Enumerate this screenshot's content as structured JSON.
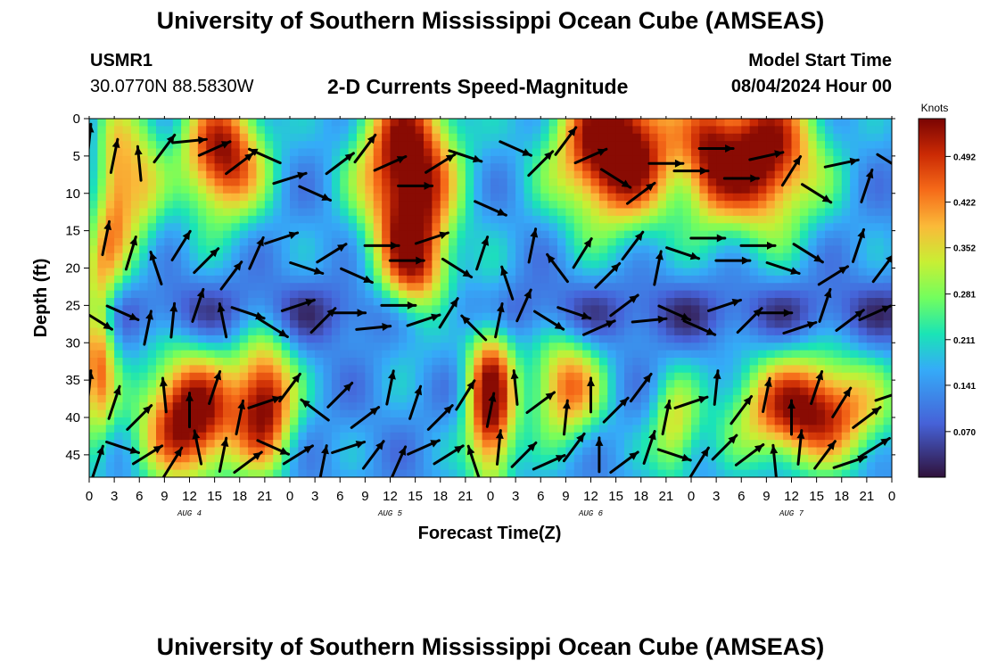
{
  "header": {
    "title": "University of Southern Mississippi Ocean Cube (AMSEAS)",
    "station": "USMR1",
    "coords": "30.0770N  88.5830W",
    "subtitle": "2-D Currents Speed-Magnitude",
    "model_label": "Model Start Time",
    "model_time": "08/04/2024 Hour 00"
  },
  "footer": {
    "title": "University of Southern Mississippi Ocean Cube (AMSEAS)"
  },
  "chart_data": {
    "type": "heatmap",
    "title": "2-D Currents Speed-Magnitude",
    "xlabel": "Forecast Time(Z)",
    "ylabel": "Depth (ft)",
    "x_range_hours": [
      0,
      96
    ],
    "y_range_ft": [
      0,
      48
    ],
    "x_tick_labels": [
      "0",
      "3",
      "6",
      "9",
      "12",
      "15",
      "18",
      "21",
      "0",
      "3",
      "6",
      "9",
      "12",
      "15",
      "18",
      "21",
      "0",
      "3",
      "6",
      "9",
      "12",
      "15",
      "18",
      "21",
      "0",
      "3",
      "6",
      "9",
      "12",
      "15",
      "18",
      "21",
      "0"
    ],
    "y_tick_labels": [
      "0",
      "5",
      "10",
      "15",
      "20",
      "25",
      "30",
      "35",
      "40",
      "45"
    ],
    "y_tick_values": [
      0,
      5,
      10,
      15,
      20,
      25,
      30,
      35,
      40,
      45
    ],
    "day_labels": [
      {
        "label": "AUG 4",
        "hour": 12
      },
      {
        "label": "AUG 5",
        "hour": 36
      },
      {
        "label": "AUG 6",
        "hour": 60
      },
      {
        "label": "AUG 7",
        "hour": 84
      }
    ],
    "colorbar": {
      "unit": "Knots",
      "min": 0.0,
      "max": 0.55,
      "tick_labels": [
        "0.492",
        "0.422",
        "0.352",
        "0.281",
        "0.211",
        "0.141",
        "0.070"
      ],
      "tick_values": [
        0.492,
        0.422,
        0.352,
        0.281,
        0.211,
        0.141,
        0.07
      ]
    },
    "field_blobs": [
      {
        "t": 16,
        "d": 5,
        "st": 3.5,
        "sd": 6,
        "a": 0.4
      },
      {
        "t": 38,
        "d": 6,
        "st": 4,
        "sd": 8,
        "a": 0.45
      },
      {
        "t": 39,
        "d": 20,
        "st": 3,
        "sd": 6,
        "a": 0.3
      },
      {
        "t": 63,
        "d": 4,
        "st": 5,
        "sd": 7,
        "a": 0.5
      },
      {
        "t": 80,
        "d": 5,
        "st": 5,
        "sd": 7,
        "a": 0.45
      },
      {
        "t": 12,
        "d": 40,
        "st": 4,
        "sd": 6,
        "a": 0.45
      },
      {
        "t": 21,
        "d": 38,
        "st": 2.5,
        "sd": 6,
        "a": 0.4
      },
      {
        "t": 48,
        "d": 38,
        "st": 2,
        "sd": 8,
        "a": 0.42
      },
      {
        "t": 57,
        "d": 36,
        "st": 3,
        "sd": 5,
        "a": 0.3
      },
      {
        "t": 86,
        "d": 39,
        "st": 6,
        "sd": 5,
        "a": 0.42
      },
      {
        "t": 1,
        "d": 30,
        "st": 1.5,
        "sd": 10,
        "a": 0.3
      },
      {
        "t": 3,
        "d": 10,
        "st": 1.5,
        "sd": 8,
        "a": 0.22
      },
      {
        "t": 6,
        "d": 8,
        "st": 2,
        "sd": 8,
        "a": 0.2
      },
      {
        "t": 70,
        "d": 42,
        "st": 2,
        "sd": 5,
        "a": 0.2
      },
      {
        "t": 74,
        "d": 5,
        "st": 2,
        "sd": 6,
        "a": 0.15
      }
    ],
    "vectors": [
      {
        "t": 0,
        "d": 3,
        "u": 0.1,
        "v": 1.0
      },
      {
        "t": 3,
        "d": 5,
        "u": 0.2,
        "v": 1.0
      },
      {
        "t": 6,
        "d": 6,
        "u": -0.1,
        "v": 1.0
      },
      {
        "t": 9,
        "d": 4,
        "u": 0.6,
        "v": 0.8
      },
      {
        "t": 12,
        "d": 3,
        "u": 1.0,
        "v": 0.1
      },
      {
        "t": 15,
        "d": 4,
        "u": 0.9,
        "v": 0.4
      },
      {
        "t": 18,
        "d": 6,
        "u": 0.8,
        "v": 0.6
      },
      {
        "t": 21,
        "d": 5,
        "u": -0.9,
        "v": 0.4
      },
      {
        "t": 24,
        "d": 8,
        "u": 0.95,
        "v": 0.3
      },
      {
        "t": 27,
        "d": 10,
        "u": 0.9,
        "v": -0.4
      },
      {
        "t": 30,
        "d": 6,
        "u": 0.8,
        "v": 0.6
      },
      {
        "t": 33,
        "d": 4,
        "u": 0.6,
        "v": 0.8
      },
      {
        "t": 36,
        "d": 6,
        "u": 0.9,
        "v": 0.4
      },
      {
        "t": 39,
        "d": 9,
        "u": 1.0,
        "v": 0.0
      },
      {
        "t": 42,
        "d": 6,
        "u": 0.8,
        "v": 0.5
      },
      {
        "t": 45,
        "d": 5,
        "u": 0.9,
        "v": -0.3
      },
      {
        "t": 48,
        "d": 12,
        "u": 0.9,
        "v": -0.4
      },
      {
        "t": 51,
        "d": 4,
        "u": 0.9,
        "v": -0.4
      },
      {
        "t": 54,
        "d": 6,
        "u": 0.7,
        "v": 0.7
      },
      {
        "t": 57,
        "d": 3,
        "u": 0.6,
        "v": 0.8
      },
      {
        "t": 60,
        "d": 5,
        "u": 0.9,
        "v": 0.4
      },
      {
        "t": 63,
        "d": 8,
        "u": 0.8,
        "v": -0.5
      },
      {
        "t": 66,
        "d": 10,
        "u": 0.8,
        "v": 0.6
      },
      {
        "t": 69,
        "d": 6,
        "u": 1.0,
        "v": 0.0
      },
      {
        "t": 72,
        "d": 7,
        "u": 1.0,
        "v": 0.0
      },
      {
        "t": 75,
        "d": 4,
        "u": 1.0,
        "v": 0.0
      },
      {
        "t": 78,
        "d": 8,
        "u": 1.0,
        "v": 0.0
      },
      {
        "t": 81,
        "d": 5,
        "u": 0.9,
        "v": 0.2
      },
      {
        "t": 84,
        "d": 7,
        "u": 0.5,
        "v": 0.8
      },
      {
        "t": 87,
        "d": 10,
        "u": 0.8,
        "v": -0.5
      },
      {
        "t": 90,
        "d": 6,
        "u": 0.95,
        "v": 0.2
      },
      {
        "t": 93,
        "d": 9,
        "u": 0.3,
        "v": 0.9
      },
      {
        "t": 96,
        "d": 6,
        "u": 0.8,
        "v": -0.5
      },
      {
        "t": 2,
        "d": 16,
        "u": 0.2,
        "v": 1.0
      },
      {
        "t": 5,
        "d": 18,
        "u": 0.3,
        "v": 1.0
      },
      {
        "t": 8,
        "d": 20,
        "u": -0.3,
        "v": 0.9
      },
      {
        "t": 11,
        "d": 17,
        "u": 0.5,
        "v": 0.8
      },
      {
        "t": 14,
        "d": 19,
        "u": 0.7,
        "v": 0.7
      },
      {
        "t": 17,
        "d": 21,
        "u": 0.6,
        "v": 0.8
      },
      {
        "t": 20,
        "d": 18,
        "u": 0.4,
        "v": 0.9
      },
      {
        "t": 23,
        "d": 16,
        "u": 0.9,
        "v": 0.3
      },
      {
        "t": 26,
        "d": 20,
        "u": 0.9,
        "v": -0.3
      },
      {
        "t": 29,
        "d": 18,
        "u": 0.8,
        "v": 0.5
      },
      {
        "t": 32,
        "d": 21,
        "u": 0.9,
        "v": -0.4
      },
      {
        "t": 35,
        "d": 17,
        "u": 1.0,
        "v": 0.0
      },
      {
        "t": 38,
        "d": 19,
        "u": 1.0,
        "v": 0.0
      },
      {
        "t": 41,
        "d": 16,
        "u": 0.9,
        "v": 0.3
      },
      {
        "t": 44,
        "d": 20,
        "u": 0.8,
        "v": -0.5
      },
      {
        "t": 47,
        "d": 18,
        "u": 0.3,
        "v": 0.9
      },
      {
        "t": 50,
        "d": 22,
        "u": -0.3,
        "v": 0.9
      },
      {
        "t": 53,
        "d": 17,
        "u": 0.2,
        "v": 1.0
      },
      {
        "t": 56,
        "d": 20,
        "u": -0.6,
        "v": 0.8
      },
      {
        "t": 59,
        "d": 18,
        "u": 0.5,
        "v": 0.8
      },
      {
        "t": 62,
        "d": 21,
        "u": 0.7,
        "v": 0.7
      },
      {
        "t": 65,
        "d": 17,
        "u": 0.6,
        "v": 0.8
      },
      {
        "t": 68,
        "d": 20,
        "u": 0.2,
        "v": 1.0
      },
      {
        "t": 71,
        "d": 18,
        "u": 0.9,
        "v": -0.3
      },
      {
        "t": 74,
        "d": 16,
        "u": 1.0,
        "v": 0.0
      },
      {
        "t": 77,
        "d": 19,
        "u": 1.0,
        "v": 0.0
      },
      {
        "t": 80,
        "d": 17,
        "u": 1.0,
        "v": 0.0
      },
      {
        "t": 83,
        "d": 20,
        "u": 0.9,
        "v": -0.3
      },
      {
        "t": 86,
        "d": 18,
        "u": 0.8,
        "v": -0.5
      },
      {
        "t": 89,
        "d": 21,
        "u": 0.8,
        "v": 0.5
      },
      {
        "t": 92,
        "d": 17,
        "u": 0.3,
        "v": 0.9
      },
      {
        "t": 95,
        "d": 20,
        "u": 0.6,
        "v": 0.8
      },
      {
        "t": 1,
        "d": 27,
        "u": 0.8,
        "v": -0.5
      },
      {
        "t": 4,
        "d": 26,
        "u": 0.9,
        "v": -0.4
      },
      {
        "t": 7,
        "d": 28,
        "u": 0.2,
        "v": 1.0
      },
      {
        "t": 10,
        "d": 27,
        "u": 0.1,
        "v": 1.0
      },
      {
        "t": 13,
        "d": 25,
        "u": 0.3,
        "v": 0.9
      },
      {
        "t": 16,
        "d": 27,
        "u": -0.2,
        "v": 1.0
      },
      {
        "t": 19,
        "d": 26,
        "u": 0.9,
        "v": -0.3
      },
      {
        "t": 22,
        "d": 28,
        "u": 0.8,
        "v": -0.5
      },
      {
        "t": 25,
        "d": 25,
        "u": 0.9,
        "v": 0.3
      },
      {
        "t": 28,
        "d": 27,
        "u": 0.7,
        "v": 0.7
      },
      {
        "t": 31,
        "d": 26,
        "u": 1.0,
        "v": 0.0
      },
      {
        "t": 34,
        "d": 28,
        "u": 1.0,
        "v": 0.1
      },
      {
        "t": 37,
        "d": 25,
        "u": 1.0,
        "v": 0.0
      },
      {
        "t": 40,
        "d": 27,
        "u": 0.9,
        "v": 0.3
      },
      {
        "t": 43,
        "d": 26,
        "u": 0.5,
        "v": 0.8
      },
      {
        "t": 46,
        "d": 28,
        "u": -0.7,
        "v": 0.7
      },
      {
        "t": 49,
        "d": 27,
        "u": 0.2,
        "v": 1.0
      },
      {
        "t": 52,
        "d": 25,
        "u": 0.4,
        "v": 0.9
      },
      {
        "t": 55,
        "d": 27,
        "u": 0.8,
        "v": -0.5
      },
      {
        "t": 58,
        "d": 26,
        "u": 0.9,
        "v": -0.3
      },
      {
        "t": 61,
        "d": 28,
        "u": 0.9,
        "v": 0.4
      },
      {
        "t": 64,
        "d": 25,
        "u": 0.8,
        "v": 0.6
      },
      {
        "t": 67,
        "d": 27,
        "u": 1.0,
        "v": 0.1
      },
      {
        "t": 70,
        "d": 26,
        "u": 0.9,
        "v": -0.4
      },
      {
        "t": 73,
        "d": 28,
        "u": 0.9,
        "v": -0.4
      },
      {
        "t": 76,
        "d": 25,
        "u": 0.9,
        "v": 0.3
      },
      {
        "t": 79,
        "d": 27,
        "u": 0.7,
        "v": 0.7
      },
      {
        "t": 82,
        "d": 26,
        "u": 1.0,
        "v": 0.0
      },
      {
        "t": 85,
        "d": 28,
        "u": 0.9,
        "v": 0.3
      },
      {
        "t": 88,
        "d": 25,
        "u": 0.3,
        "v": 0.9
      },
      {
        "t": 91,
        "d": 27,
        "u": 0.8,
        "v": 0.6
      },
      {
        "t": 94,
        "d": 26,
        "u": 0.9,
        "v": 0.4
      },
      {
        "t": 0,
        "d": 36,
        "u": 0.1,
        "v": 1.0
      },
      {
        "t": 3,
        "d": 38,
        "u": 0.3,
        "v": 0.9
      },
      {
        "t": 6,
        "d": 40,
        "u": 0.7,
        "v": 0.7
      },
      {
        "t": 9,
        "d": 37,
        "u": -0.1,
        "v": 1.0
      },
      {
        "t": 12,
        "d": 39,
        "u": 0.0,
        "v": 1.0
      },
      {
        "t": 15,
        "d": 36,
        "u": 0.3,
        "v": 0.9
      },
      {
        "t": 18,
        "d": 40,
        "u": 0.2,
        "v": 1.0
      },
      {
        "t": 21,
        "d": 38,
        "u": 0.9,
        "v": 0.3
      },
      {
        "t": 24,
        "d": 36,
        "u": 0.6,
        "v": 0.8
      },
      {
        "t": 27,
        "d": 39,
        "u": -0.8,
        "v": 0.6
      },
      {
        "t": 30,
        "d": 37,
        "u": 0.7,
        "v": 0.7
      },
      {
        "t": 33,
        "d": 40,
        "u": 0.8,
        "v": 0.6
      },
      {
        "t": 36,
        "d": 36,
        "u": 0.2,
        "v": 1.0
      },
      {
        "t": 39,
        "d": 38,
        "u": 0.3,
        "v": 0.9
      },
      {
        "t": 42,
        "d": 40,
        "u": 0.7,
        "v": 0.7
      },
      {
        "t": 45,
        "d": 37,
        "u": 0.5,
        "v": 0.8
      },
      {
        "t": 48,
        "d": 39,
        "u": 0.2,
        "v": 1.0
      },
      {
        "t": 51,
        "d": 36,
        "u": -0.1,
        "v": 1.0
      },
      {
        "t": 54,
        "d": 38,
        "u": 0.8,
        "v": 0.6
      },
      {
        "t": 57,
        "d": 40,
        "u": 0.1,
        "v": 1.0
      },
      {
        "t": 60,
        "d": 37,
        "u": 0.0,
        "v": 1.0
      },
      {
        "t": 63,
        "d": 39,
        "u": 0.7,
        "v": 0.7
      },
      {
        "t": 66,
        "d": 36,
        "u": 0.6,
        "v": 0.8
      },
      {
        "t": 69,
        "d": 40,
        "u": 0.2,
        "v": 1.0
      },
      {
        "t": 72,
        "d": 38,
        "u": 0.9,
        "v": 0.3
      },
      {
        "t": 75,
        "d": 36,
        "u": 0.1,
        "v": 1.0
      },
      {
        "t": 78,
        "d": 39,
        "u": 0.6,
        "v": 0.8
      },
      {
        "t": 81,
        "d": 37,
        "u": 0.2,
        "v": 1.0
      },
      {
        "t": 84,
        "d": 40,
        "u": 0.0,
        "v": 1.0
      },
      {
        "t": 87,
        "d": 36,
        "u": 0.3,
        "v": 0.9
      },
      {
        "t": 90,
        "d": 38,
        "u": 0.5,
        "v": 0.8
      },
      {
        "t": 93,
        "d": 40,
        "u": 0.8,
        "v": 0.6
      },
      {
        "t": 96,
        "d": 37,
        "u": 0.9,
        "v": 0.3
      },
      {
        "t": 1,
        "d": 46,
        "u": 0.3,
        "v": 0.9
      },
      {
        "t": 4,
        "d": 44,
        "u": 0.9,
        "v": -0.3
      },
      {
        "t": 7,
        "d": 45,
        "u": 0.8,
        "v": 0.5
      },
      {
        "t": 10,
        "d": 46,
        "u": 0.5,
        "v": 0.8
      },
      {
        "t": 13,
        "d": 44,
        "u": -0.2,
        "v": 1.0
      },
      {
        "t": 16,
        "d": 45,
        "u": 0.2,
        "v": 1.0
      },
      {
        "t": 19,
        "d": 46,
        "u": 0.8,
        "v": 0.6
      },
      {
        "t": 22,
        "d": 44,
        "u": 0.9,
        "v": -0.4
      },
      {
        "t": 25,
        "d": 45,
        "u": 0.8,
        "v": 0.5
      },
      {
        "t": 28,
        "d": 46,
        "u": 0.2,
        "v": 1.0
      },
      {
        "t": 31,
        "d": 44,
        "u": 0.9,
        "v": 0.3
      },
      {
        "t": 34,
        "d": 45,
        "u": 0.6,
        "v": 0.8
      },
      {
        "t": 37,
        "d": 46,
        "u": 0.4,
        "v": 0.9
      },
      {
        "t": 40,
        "d": 44,
        "u": 0.9,
        "v": 0.4
      },
      {
        "t": 43,
        "d": 45,
        "u": 0.8,
        "v": 0.5
      },
      {
        "t": 46,
        "d": 46,
        "u": -0.3,
        "v": 0.9
      },
      {
        "t": 49,
        "d": 44,
        "u": 0.1,
        "v": 1.0
      },
      {
        "t": 52,
        "d": 45,
        "u": 0.7,
        "v": 0.7
      },
      {
        "t": 55,
        "d": 46,
        "u": 0.9,
        "v": 0.4
      },
      {
        "t": 58,
        "d": 44,
        "u": 0.6,
        "v": 0.8
      },
      {
        "t": 61,
        "d": 45,
        "u": 0.0,
        "v": 1.0
      },
      {
        "t": 64,
        "d": 46,
        "u": 0.8,
        "v": 0.6
      },
      {
        "t": 67,
        "d": 44,
        "u": 0.3,
        "v": 0.9
      },
      {
        "t": 70,
        "d": 45,
        "u": 0.9,
        "v": -0.3
      },
      {
        "t": 73,
        "d": 46,
        "u": 0.5,
        "v": 0.8
      },
      {
        "t": 76,
        "d": 44,
        "u": 0.7,
        "v": 0.7
      },
      {
        "t": 79,
        "d": 45,
        "u": 0.8,
        "v": 0.6
      },
      {
        "t": 82,
        "d": 46,
        "u": -0.1,
        "v": 1.0
      },
      {
        "t": 85,
        "d": 44,
        "u": 0.1,
        "v": 1.0
      },
      {
        "t": 88,
        "d": 45,
        "u": 0.6,
        "v": 0.8
      },
      {
        "t": 91,
        "d": 46,
        "u": 0.9,
        "v": 0.3
      },
      {
        "t": 94,
        "d": 44,
        "u": 0.8,
        "v": 0.5
      }
    ]
  }
}
